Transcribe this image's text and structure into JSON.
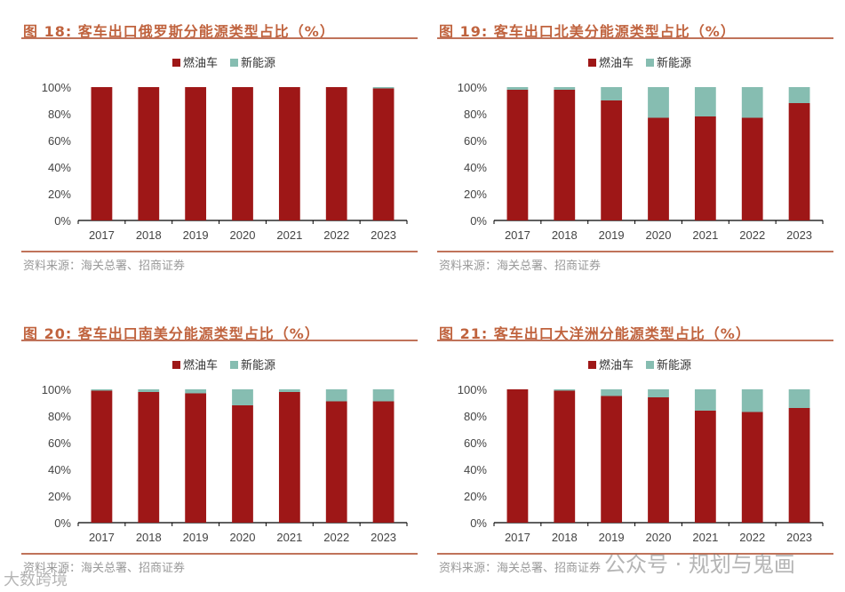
{
  "colors": {
    "fuel": "#9e1717",
    "nev": "#86bdb1",
    "title": "#c0633e"
  },
  "source": "资料来源：海关总署、招商证券",
  "watermark": {
    "account": "公众号 · 规划与鬼画",
    "corner": "大数跨境"
  },
  "chart_data": [
    {
      "type": "bar",
      "stacked": true,
      "title": "图 18:  客车出口俄罗斯分能源类型占比（%）",
      "categories": [
        "2017",
        "2018",
        "2019",
        "2020",
        "2021",
        "2022",
        "2023"
      ],
      "yticks": [
        "0%",
        "20%",
        "40%",
        "60%",
        "80%",
        "100%"
      ],
      "ylim": [
        0,
        100
      ],
      "legend": "top",
      "series": [
        {
          "name": "燃油车",
          "values": [
            100,
            100,
            100,
            100,
            100,
            100,
            99
          ]
        },
        {
          "name": "新能源",
          "values": [
            0,
            0,
            0,
            0,
            0,
            0,
            1
          ]
        }
      ]
    },
    {
      "type": "bar",
      "stacked": true,
      "title": "图 19:  客车出口北美分能源类型占比（%）",
      "categories": [
        "2017",
        "2018",
        "2019",
        "2020",
        "2021",
        "2022",
        "2023"
      ],
      "yticks": [
        "0%",
        "20%",
        "40%",
        "60%",
        "80%",
        "100%"
      ],
      "ylim": [
        0,
        100
      ],
      "legend": "top",
      "series": [
        {
          "name": "燃油车",
          "values": [
            98,
            98,
            90,
            77,
            78,
            77,
            88
          ]
        },
        {
          "name": "新能源",
          "values": [
            2,
            2,
            10,
            23,
            22,
            23,
            12
          ]
        }
      ]
    },
    {
      "type": "bar",
      "stacked": true,
      "title": "图 20:  客车出口南美分能源类型占比（%）",
      "categories": [
        "2017",
        "2018",
        "2019",
        "2020",
        "2021",
        "2022",
        "2023"
      ],
      "yticks": [
        "0%",
        "20%",
        "40%",
        "60%",
        "80%",
        "100%"
      ],
      "ylim": [
        0,
        100
      ],
      "legend": "top",
      "series": [
        {
          "name": "燃油车",
          "values": [
            99,
            98,
            97,
            88,
            98,
            91,
            91
          ]
        },
        {
          "name": "新能源",
          "values": [
            1,
            2,
            3,
            12,
            2,
            9,
            9
          ]
        }
      ]
    },
    {
      "type": "bar",
      "stacked": true,
      "title": "图 21:  客车出口大洋洲分能源类型占比（%）",
      "categories": [
        "2017",
        "2018",
        "2019",
        "2020",
        "2021",
        "2022",
        "2023"
      ],
      "yticks": [
        "0%",
        "20%",
        "40%",
        "60%",
        "80%",
        "100%"
      ],
      "ylim": [
        0,
        100
      ],
      "legend": "top",
      "series": [
        {
          "name": "燃油车",
          "values": [
            100,
            99,
            95,
            94,
            84,
            83,
            86
          ]
        },
        {
          "name": "新能源",
          "values": [
            0,
            1,
            5,
            6,
            16,
            17,
            14
          ]
        }
      ]
    }
  ]
}
